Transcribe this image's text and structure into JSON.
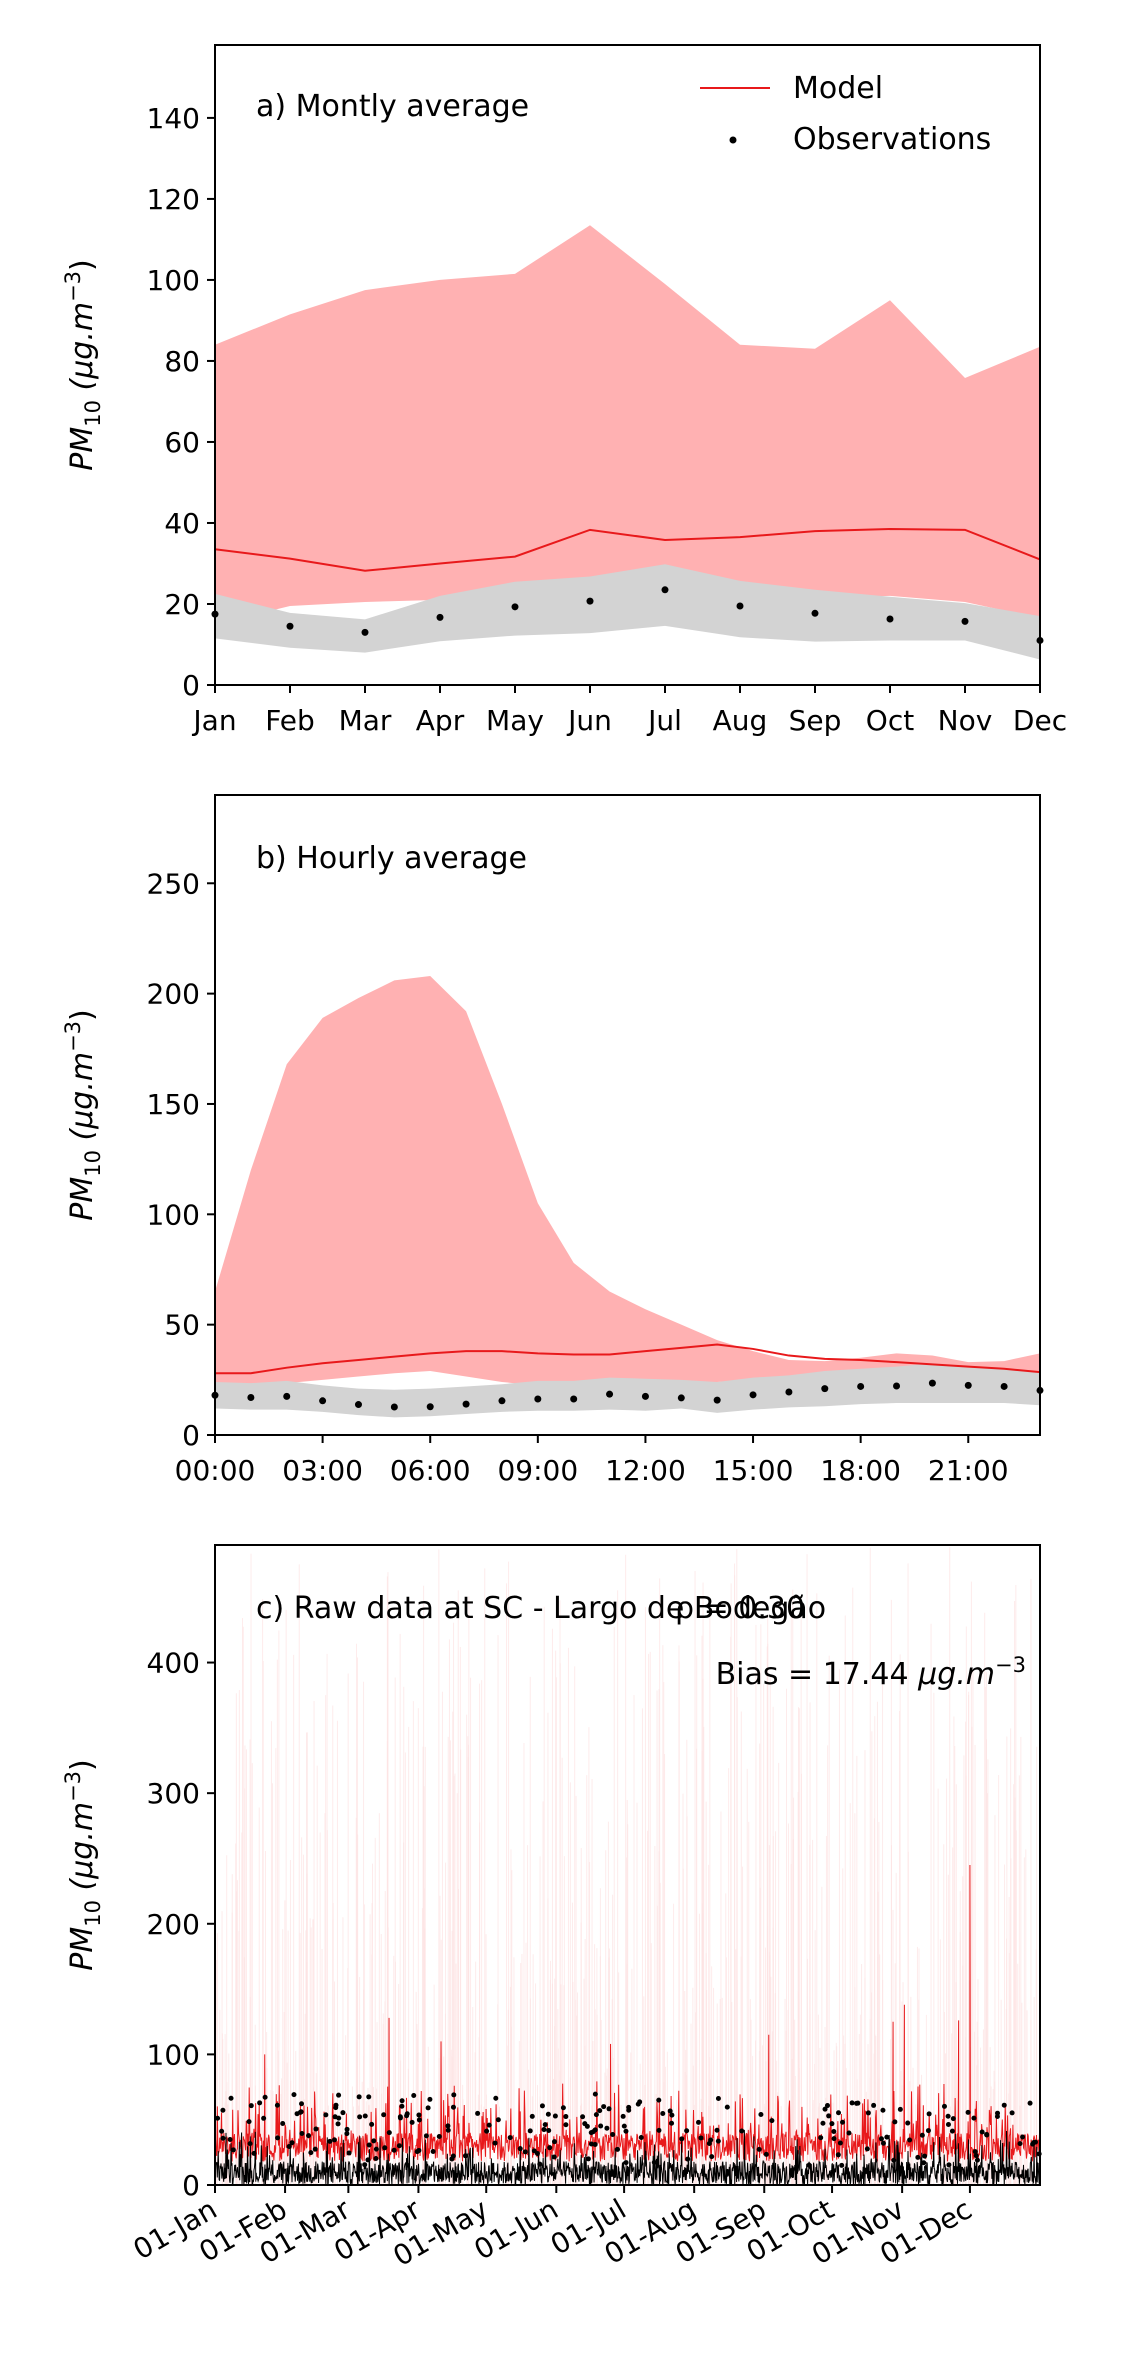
{
  "colors": {
    "model_line": "#e8191b",
    "model_band": "#ffb1b2",
    "obs_band": "#d3d3d3",
    "obs_points": "#000000",
    "raw_model_spread": "#fde3e3"
  },
  "legend": {
    "model": "Model",
    "observations": "Observations"
  },
  "ylabel": {
    "pm": "PM",
    "sub": "10",
    "unit": " (μg.m",
    "exp": "−3",
    "close": ")"
  },
  "chart_data": [
    {
      "type": "line",
      "title": "a) Montly average",
      "categories": [
        "Jan",
        "Feb",
        "Mar",
        "Apr",
        "May",
        "Jun",
        "Jul",
        "Aug",
        "Sep",
        "Oct",
        "Nov",
        "Dec"
      ],
      "ylim": [
        0,
        158
      ],
      "yticks": [
        "0",
        "20",
        "40",
        "60",
        "80",
        "100",
        "120",
        "140"
      ],
      "legend_position": "top-right",
      "series": [
        {
          "name": "Model",
          "kind": "line",
          "values": [
            33.5,
            31.2,
            28.2,
            30,
            31.7,
            38.3,
            35.8,
            36.5,
            38,
            38.5,
            38.3,
            31
          ]
        },
        {
          "name": "Observations",
          "kind": "scatter",
          "values": [
            17.5,
            14.5,
            13,
            16.7,
            19.3,
            20.7,
            23.5,
            19.5,
            17.7,
            16.3,
            15.7,
            11
          ]
        }
      ],
      "model_range": {
        "lower": [
          15,
          19.5,
          20.5,
          21,
          21,
          24,
          24,
          22,
          21.5,
          22,
          20.5,
          16.5
        ],
        "upper": [
          84,
          91.5,
          97.5,
          100,
          101.5,
          113.5,
          99,
          84,
          83,
          95,
          75.8,
          83.5
        ]
      },
      "obs_range": {
        "lower": [
          11.5,
          9.2,
          8,
          10.8,
          12.2,
          12.8,
          14.6,
          11.8,
          10.7,
          11,
          11,
          6.3
        ],
        "upper": [
          22.5,
          17.8,
          16.2,
          22,
          25.5,
          26.8,
          29.8,
          25.7,
          23.5,
          21.8,
          20.2,
          17
        ]
      }
    },
    {
      "type": "line",
      "title": "b) Hourly average",
      "x": [
        0,
        1,
        2,
        3,
        4,
        5,
        6,
        7,
        8,
        9,
        10,
        11,
        12,
        13,
        14,
        15,
        16,
        17,
        18,
        19,
        20,
        21,
        22,
        23
      ],
      "xticks": [
        "00:00",
        "03:00",
        "06:00",
        "09:00",
        "12:00",
        "15:00",
        "18:00",
        "21:00"
      ],
      "ylim": [
        0,
        290
      ],
      "yticks": [
        "0",
        "50",
        "100",
        "150",
        "200",
        "250"
      ],
      "series": [
        {
          "name": "Model",
          "kind": "line",
          "values": [
            28,
            28,
            30.5,
            32.5,
            34,
            35.5,
            37,
            38,
            38,
            37,
            36.5,
            36.5,
            38,
            39.5,
            41,
            39,
            36,
            34.5,
            34,
            33,
            32,
            31,
            30,
            28.5
          ]
        },
        {
          "name": "Observations",
          "kind": "scatter",
          "values": [
            18,
            17,
            17.5,
            15.5,
            13.8,
            12.7,
            12.8,
            14,
            15.5,
            16.3,
            16.3,
            18.5,
            17.5,
            16.8,
            15.8,
            18.2,
            19.5,
            21,
            22,
            22.2,
            23.5,
            22.5,
            22,
            20.2
          ]
        }
      ],
      "model_range": {
        "lower": [
          22,
          22.5,
          23.5,
          25,
          26.5,
          28,
          29,
          26.5,
          24,
          22.5,
          22,
          22,
          22.5,
          23,
          24,
          25,
          26,
          27,
          27.5,
          27.5,
          27,
          26,
          25,
          24
        ]
      },
      "model_range_upper": [
        65,
        120,
        168,
        189,
        198,
        206,
        208,
        192,
        150,
        105,
        78,
        65,
        57,
        50,
        43,
        38,
        34,
        33.5,
        35,
        37,
        36,
        33,
        33.5,
        37
      ],
      "obs_range": {
        "lower": [
          12,
          11.5,
          11.5,
          10.5,
          9,
          8,
          8.5,
          9.5,
          10.5,
          11,
          11,
          11.5,
          11,
          12,
          10,
          11.5,
          12.5,
          13,
          14,
          14.5,
          14.5,
          14.5,
          14.5,
          13.5
        ],
        "upper": [
          24,
          23.5,
          24.5,
          22.5,
          21,
          20.5,
          21,
          22,
          23,
          24.5,
          24.5,
          26,
          25.5,
          25,
          24,
          26,
          27,
          29,
          30,
          31,
          32.5,
          31,
          30,
          28.5
        ]
      }
    },
    {
      "type": "line",
      "title": "c) Raw data at SC - Largo de Bodegão",
      "annotation_rho": "ρ = 0.30",
      "annotation_bias_prefix": "Bias = 17.44 ",
      "annotation_bias_unit": "μg.m",
      "annotation_bias_exp": "−3",
      "xticks": [
        "01-Jan",
        "01-Feb",
        "01-Mar",
        "01-Apr",
        "01-May",
        "01-Jun",
        "01-Jul",
        "01-Aug",
        "01-Sep",
        "01-Oct",
        "01-Nov",
        "01-Dec"
      ],
      "xtick_days": [
        0,
        31,
        59,
        90,
        120,
        151,
        181,
        212,
        243,
        273,
        304,
        334
      ],
      "xlim_days": [
        0,
        365
      ],
      "ylim": [
        0,
        490
      ],
      "yticks": [
        "0",
        "100",
        "200",
        "300",
        "400"
      ],
      "series": [
        {
          "name": "Model",
          "kind": "line",
          "values_description_free": true
        },
        {
          "name": "Observations",
          "kind": "scatter"
        }
      ],
      "model_peaks": [
        [
          334,
          245
        ],
        [
          305,
          138
        ],
        [
          329,
          126
        ],
        [
          300,
          125
        ],
        [
          77,
          128
        ],
        [
          245,
          115
        ],
        [
          100,
          110
        ],
        [
          175,
          108
        ],
        [
          22,
          100
        ]
      ],
      "typical_model_range": [
        10,
        60
      ],
      "typical_obs_range": [
        0,
        30
      ],
      "max_obs": 70
    }
  ]
}
